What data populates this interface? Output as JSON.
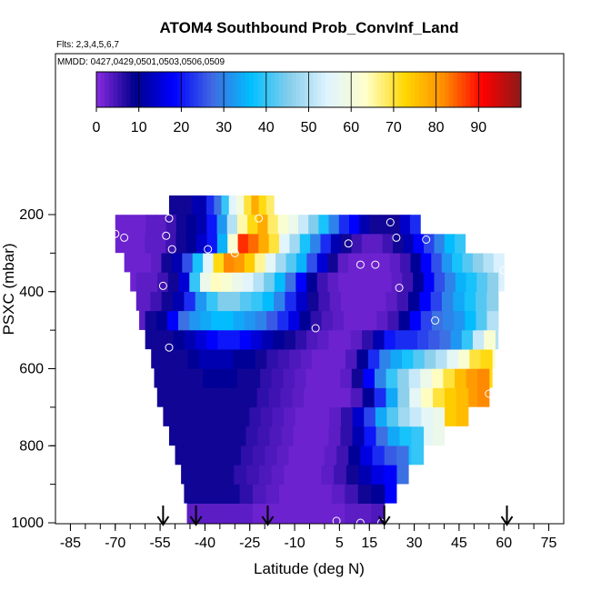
{
  "chart_data": {
    "type": "heatmap",
    "title": "ATOM4 Southbound Prob_ConvInf_Land",
    "flights_note": "Flts: 2,3,4,5,6,7",
    "dates_note": "MMDD: 0427,0429,0501,0503,0506,0509",
    "xlabel": "Latitude (deg N)",
    "ylabel": "PSXC (mbar)",
    "xlim": [
      -90,
      80
    ],
    "ylim": [
      1000,
      0
    ],
    "x_ticks": [
      -85,
      -70,
      -55,
      -40,
      -25,
      -10,
      5,
      15,
      30,
      45,
      60,
      75
    ],
    "y_ticks": [
      200,
      400,
      600,
      800,
      1000
    ],
    "colorbar": {
      "min": 0,
      "max": 100,
      "ticks": [
        0,
        10,
        20,
        30,
        40,
        50,
        60,
        70,
        80,
        90
      ],
      "colors": [
        "#8a2be2",
        "#00008b",
        "#0000ff",
        "#4169e1",
        "#00bfff",
        "#87ceeb",
        "#e0f4ff",
        "#ffffc8",
        "#ffd700",
        "#ff8c00",
        "#ff0000",
        "#8b1a1a"
      ]
    },
    "rows": [
      {
        "p": 200,
        "x0": -52,
        "x1": -17,
        "v": [
          8,
          8,
          8,
          12,
          12,
          22,
          28,
          40,
          55,
          60,
          70,
          78,
          72,
          68
        ]
      },
      {
        "p": 250,
        "x0": -70,
        "x1": 32,
        "v": [
          2,
          2,
          2,
          3,
          3,
          5,
          8,
          10,
          12,
          20,
          32,
          50,
          65,
          72,
          78,
          68,
          62,
          58,
          52,
          45,
          38,
          30,
          22,
          18,
          12,
          8,
          8,
          8,
          14,
          22
        ]
      },
      {
        "p": 300,
        "x0": -67,
        "x1": 47,
        "v": [
          2,
          2,
          3,
          3,
          5,
          8,
          10,
          14,
          20,
          35,
          62,
          88,
          84,
          78,
          70,
          55,
          48,
          38,
          30,
          22,
          12,
          8,
          5,
          3,
          3,
          5,
          8,
          12,
          18,
          24,
          30,
          36,
          40
        ]
      },
      {
        "p": 350,
        "x0": -65,
        "x1": 60,
        "v": [
          2,
          2,
          3,
          8,
          12,
          25,
          38,
          55,
          72,
          82,
          80,
          74,
          66,
          56,
          48,
          42,
          35,
          25,
          15,
          8,
          3,
          2,
          2,
          2,
          2,
          3,
          5,
          10,
          18,
          25,
          32,
          38,
          42,
          46,
          50,
          54
        ]
      },
      {
        "p": 400,
        "x0": -63,
        "x1": 58,
        "v": [
          3,
          3,
          5,
          8,
          15,
          40,
          58,
          64,
          62,
          58,
          55,
          50,
          44,
          36,
          28,
          18,
          10,
          5,
          3,
          2,
          2,
          2,
          2,
          2,
          3,
          5,
          10,
          18,
          25,
          30,
          35,
          38,
          42,
          46
        ]
      },
      {
        "p": 450,
        "x0": -62,
        "x1": 58,
        "v": [
          3,
          5,
          8,
          12,
          22,
          32,
          40,
          45,
          45,
          42,
          40,
          36,
          30,
          22,
          14,
          8,
          5,
          3,
          2,
          2,
          2,
          2,
          3,
          5,
          10,
          18,
          24,
          30,
          34,
          38,
          42,
          46
        ]
      },
      {
        "p": 500,
        "x0": -60,
        "x1": 58,
        "v": [
          8,
          10,
          18,
          28,
          32,
          34,
          36,
          36,
          34,
          32,
          30,
          26,
          22,
          16,
          10,
          6,
          4,
          3,
          2,
          2,
          2,
          3,
          5,
          10,
          18,
          24,
          28,
          30,
          32,
          36,
          42,
          50
        ]
      },
      {
        "p": 550,
        "x0": -58,
        "x1": 57,
        "v": [
          8,
          8,
          10,
          12,
          15,
          18,
          20,
          20,
          18,
          15,
          12,
          10,
          8,
          6,
          4,
          3,
          2,
          2,
          3,
          6,
          12,
          20,
          22,
          22,
          24,
          26,
          28,
          32,
          40,
          52,
          62
        ]
      },
      {
        "p": 600,
        "x0": -57,
        "x1": 56,
        "v": [
          8,
          8,
          8,
          10,
          12,
          12,
          12,
          10,
          10,
          8,
          6,
          5,
          4,
          3,
          2,
          2,
          2,
          4,
          10,
          22,
          30,
          34,
          38,
          42,
          46,
          50,
          56,
          62,
          70,
          72
        ]
      },
      {
        "p": 650,
        "x0": -56,
        "x1": 55,
        "v": [
          8,
          8,
          8,
          8,
          10,
          10,
          10,
          8,
          8,
          6,
          5,
          4,
          3,
          2,
          2,
          2,
          3,
          8,
          18,
          30,
          40,
          46,
          52,
          58,
          64,
          70,
          76,
          80,
          82
        ]
      },
      {
        "p": 700,
        "x0": -54,
        "x1": 48,
        "v": [
          8,
          8,
          8,
          8,
          8,
          8,
          8,
          8,
          6,
          5,
          4,
          3,
          2,
          2,
          2,
          2,
          4,
          10,
          22,
          34,
          46,
          56,
          64,
          70,
          74,
          76
        ]
      },
      {
        "p": 750,
        "x0": -52,
        "x1": 40,
        "v": [
          8,
          8,
          8,
          8,
          8,
          8,
          8,
          6,
          5,
          4,
          3,
          2,
          2,
          2,
          3,
          6,
          14,
          24,
          34,
          42,
          48,
          52,
          56,
          58
        ]
      },
      {
        "p": 800,
        "x0": -50,
        "x1": 33,
        "v": [
          8,
          8,
          8,
          8,
          8,
          8,
          6,
          5,
          4,
          3,
          2,
          2,
          2,
          3,
          6,
          12,
          20,
          28,
          34,
          38,
          40
        ]
      },
      {
        "p": 850,
        "x0": -48,
        "x1": 28,
        "v": [
          8,
          8,
          8,
          8,
          8,
          6,
          5,
          4,
          3,
          2,
          2,
          2,
          3,
          5,
          10,
          16,
          22,
          26,
          28
        ]
      },
      {
        "p": 900,
        "x0": -47,
        "x1": 24,
        "v": [
          8,
          8,
          8,
          8,
          6,
          5,
          4,
          3,
          2,
          2,
          2,
          3,
          5,
          8,
          12,
          16,
          18
        ]
      },
      {
        "p": 950,
        "x0": -46,
        "x1": 20,
        "v": [
          8,
          8,
          8,
          8,
          6,
          4,
          3,
          2,
          2,
          2,
          2,
          3,
          5,
          8,
          10
        ]
      },
      {
        "p": 1000,
        "x0": -46,
        "x1": 20,
        "v": [
          3,
          3,
          3,
          3,
          3,
          2,
          2,
          2,
          2,
          2,
          2,
          2,
          3,
          3,
          4
        ]
      }
    ],
    "markers": [
      {
        "x": -52,
        "p": 210
      },
      {
        "x": -70,
        "p": 250
      },
      {
        "x": -67,
        "p": 260
      },
      {
        "x": -53,
        "p": 255
      },
      {
        "x": -51,
        "p": 290
      },
      {
        "x": -39,
        "p": 290
      },
      {
        "x": -22,
        "p": 210
      },
      {
        "x": -30,
        "p": 300
      },
      {
        "x": 8,
        "p": 275
      },
      {
        "x": 22,
        "p": 220
      },
      {
        "x": 24,
        "p": 260
      },
      {
        "x": 34,
        "p": 265
      },
      {
        "x": 12,
        "p": 330
      },
      {
        "x": 17,
        "p": 330
      },
      {
        "x": 60,
        "p": 345
      },
      {
        "x": 25,
        "p": 390
      },
      {
        "x": -54,
        "p": 385
      },
      {
        "x": 37,
        "p": 475
      },
      {
        "x": -3,
        "p": 495
      },
      {
        "x": -52,
        "p": 545
      },
      {
        "x": 55,
        "p": 665
      },
      {
        "x": 4,
        "p": 995
      },
      {
        "x": 12,
        "p": 1000
      },
      {
        "x": 19,
        "p": 1000
      }
    ],
    "arrows": [
      -54,
      -43,
      -19,
      20,
      61
    ]
  }
}
